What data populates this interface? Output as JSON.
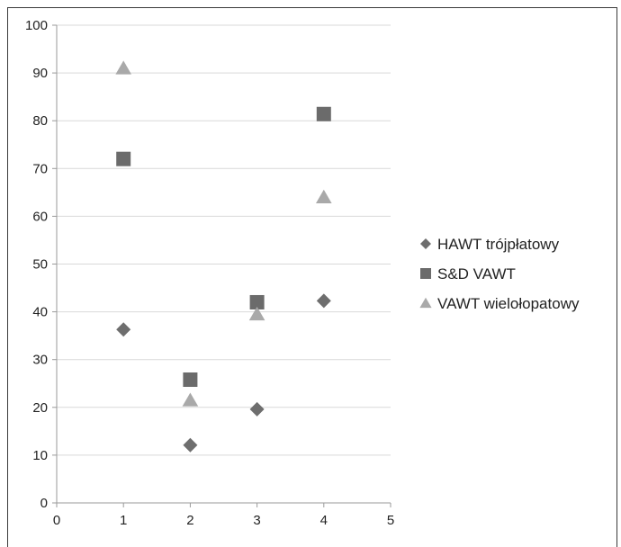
{
  "chart_data": {
    "type": "scatter",
    "title": "",
    "xlabel": "",
    "ylabel": "",
    "xlim": [
      0,
      5
    ],
    "ylim": [
      0,
      100
    ],
    "x_ticks": [
      0,
      1,
      2,
      3,
      4,
      5
    ],
    "y_ticks": [
      0,
      10,
      20,
      30,
      40,
      50,
      60,
      70,
      80,
      90,
      100
    ],
    "grid": "horizontal",
    "legend_position": "right",
    "series": [
      {
        "name": "HAWT trójpłatowy",
        "marker": "diamond",
        "color": "#6e6e6e",
        "x": [
          1,
          2,
          3,
          4
        ],
        "y": [
          36.3,
          12.1,
          19.6,
          42.3
        ]
      },
      {
        "name": "S&D VAWT",
        "marker": "square",
        "color": "#6b6b6b",
        "x": [
          1,
          2,
          3,
          4
        ],
        "y": [
          72,
          25.8,
          42,
          81.4
        ]
      },
      {
        "name": "VAWT wielołopatowy",
        "marker": "triangle",
        "color": "#a9a9a9",
        "x": [
          1,
          2,
          3,
          4
        ],
        "y": [
          91,
          21.5,
          39.5,
          64
        ]
      }
    ]
  }
}
